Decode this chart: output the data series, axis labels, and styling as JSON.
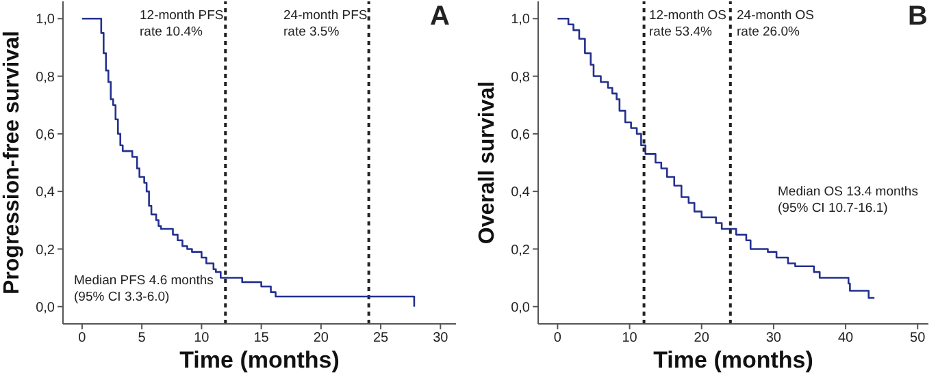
{
  "chart_data": [
    {
      "type": "step",
      "xlabel": "Time (months)",
      "ylabel": "Progression-free survival",
      "marker": "none",
      "xlim": [
        -1.6,
        31.3
      ],
      "xticks": [
        0,
        5,
        10,
        15,
        20,
        25,
        30
      ],
      "ylim": [
        -0.06,
        1.06
      ],
      "yticks": [
        {
          "value": 0,
          "label": "0,0"
        },
        {
          "value": 0.2,
          "label": "0,2"
        },
        {
          "value": 0.4,
          "label": "0,4"
        },
        {
          "value": 0.6,
          "label": "0,6"
        },
        {
          "value": 0.8,
          "label": "0,8"
        },
        {
          "value": 1,
          "label": "1,0"
        }
      ],
      "color": "#23308f",
      "x": [
        0,
        1.6,
        1.8,
        2.0,
        2.2,
        2.4,
        2.6,
        2.8,
        3.0,
        3.2,
        3.4,
        3.6,
        4.2,
        4.6,
        4.8,
        5.2,
        5.4,
        5.6,
        5.8,
        6.2,
        6.4,
        6.6,
        7.6,
        8.0,
        8.4,
        8.8,
        9.2,
        10.0,
        10.4,
        11.0,
        11.2,
        11.6,
        12.0,
        13.4,
        15.0,
        15.8,
        16.2,
        27.8,
        27.8
      ],
      "values": [
        1,
        0.95,
        0.88,
        0.82,
        0.78,
        0.72,
        0.7,
        0.65,
        0.6,
        0.56,
        0.54,
        0.54,
        0.52,
        0.48,
        0.45,
        0.43,
        0.4,
        0.35,
        0.32,
        0.3,
        0.28,
        0.27,
        0.25,
        0.23,
        0.21,
        0.2,
        0.19,
        0.17,
        0.15,
        0.13,
        0.12,
        0.1,
        0.1,
        0.085,
        0.07,
        0.05,
        0.035,
        0.035,
        0.0
      ],
      "ref_lines": [
        {
          "axis": "x",
          "value": 12,
          "color": "#222222",
          "line_style": "dashed"
        },
        {
          "axis": "x",
          "value": 24,
          "color": "#222222",
          "line_style": "dashed"
        }
      ],
      "annotations": [
        "12-month PFS\nrate 10.4%",
        "24-month PFS\nrate 3.5%",
        "Median PFS 4.6 months\n(95% CI 3.3-6.0)",
        "A"
      ]
    },
    {
      "type": "step",
      "xlabel": "Time (months)",
      "ylabel": "Overall survival",
      "marker": "none",
      "xlim": [
        -2.7,
        51.5
      ],
      "xticks": [
        0,
        10,
        20,
        30,
        40,
        50
      ],
      "ylim": [
        -0.06,
        1.06
      ],
      "yticks": [
        {
          "value": 0,
          "label": "0,0"
        },
        {
          "value": 0.2,
          "label": "0,2"
        },
        {
          "value": 0.4,
          "label": "0,4"
        },
        {
          "value": 0.6,
          "label": "0,6"
        },
        {
          "value": 0.8,
          "label": "0,8"
        },
        {
          "value": 1,
          "label": "1,0"
        }
      ],
      "color": "#23308f",
      "x": [
        0,
        1.5,
        2.2,
        3.0,
        3.8,
        4.6,
        5.0,
        6.0,
        7.0,
        7.6,
        8.2,
        8.6,
        9.4,
        10.2,
        11.0,
        11.6,
        12.2,
        13.6,
        14.4,
        15.2,
        16.2,
        17.2,
        18.2,
        19.0,
        20.0,
        22.0,
        22.8,
        24.8,
        26.2,
        26.8,
        29.2,
        30.4,
        32.0,
        33.0,
        35.6,
        36.4,
        40.4,
        40.6,
        43.2,
        44.0
      ],
      "values": [
        1,
        0.98,
        0.96,
        0.93,
        0.88,
        0.84,
        0.8,
        0.78,
        0.76,
        0.74,
        0.72,
        0.68,
        0.64,
        0.62,
        0.6,
        0.56,
        0.53,
        0.5,
        0.48,
        0.45,
        0.42,
        0.38,
        0.36,
        0.33,
        0.31,
        0.29,
        0.27,
        0.25,
        0.23,
        0.2,
        0.19,
        0.17,
        0.15,
        0.14,
        0.12,
        0.1,
        0.08,
        0.055,
        0.03,
        0.03
      ],
      "ref_lines": [
        {
          "axis": "x",
          "value": 12,
          "color": "#222222",
          "line_style": "dashed"
        },
        {
          "axis": "x",
          "value": 24,
          "color": "#222222",
          "line_style": "dashed"
        }
      ],
      "annotations": [
        "12-month OS\nrate 53.4%",
        "24-month OS\nrate 26.0%",
        "Median OS 13.4 months\n(95% CI 10.7-16.1)",
        "B"
      ]
    }
  ]
}
